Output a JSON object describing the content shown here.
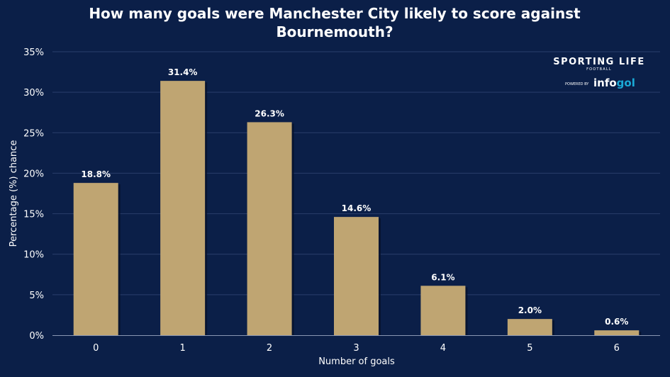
{
  "colors": {
    "background": "#0b1f48",
    "bar": "#bfa572",
    "bar_shadow": "#06122c",
    "grid": "#2a3f6b",
    "text": "#ffffff",
    "brand_accent": "#1aa9d6"
  },
  "branding": {
    "name": "SPORTING LIFE",
    "section": "FOOTBALL",
    "powered_by": "POWERED BY",
    "partner_a": "info",
    "partner_b": "gol"
  },
  "chart_data": {
    "type": "bar",
    "title_lines": [
      "How many goals were Manchester City likely to score against",
      "Bournemouth?"
    ],
    "xlabel": "Number of goals",
    "ylabel": "Percentage (%) chance",
    "categories": [
      "0",
      "1",
      "2",
      "3",
      "4",
      "5",
      "6"
    ],
    "values": [
      18.8,
      31.4,
      26.3,
      14.6,
      6.1,
      2.0,
      0.6
    ],
    "value_labels": [
      "18.8%",
      "31.4%",
      "26.3%",
      "14.6%",
      "6.1%",
      "2.0%",
      "0.6%"
    ],
    "ylim": [
      0,
      35
    ],
    "yticks": [
      0,
      5,
      10,
      15,
      20,
      25,
      30,
      35
    ],
    "ytick_labels": [
      "0%",
      "5%",
      "10%",
      "15%",
      "20%",
      "25%",
      "30%",
      "35%"
    ],
    "grid": true,
    "legend": "none"
  }
}
